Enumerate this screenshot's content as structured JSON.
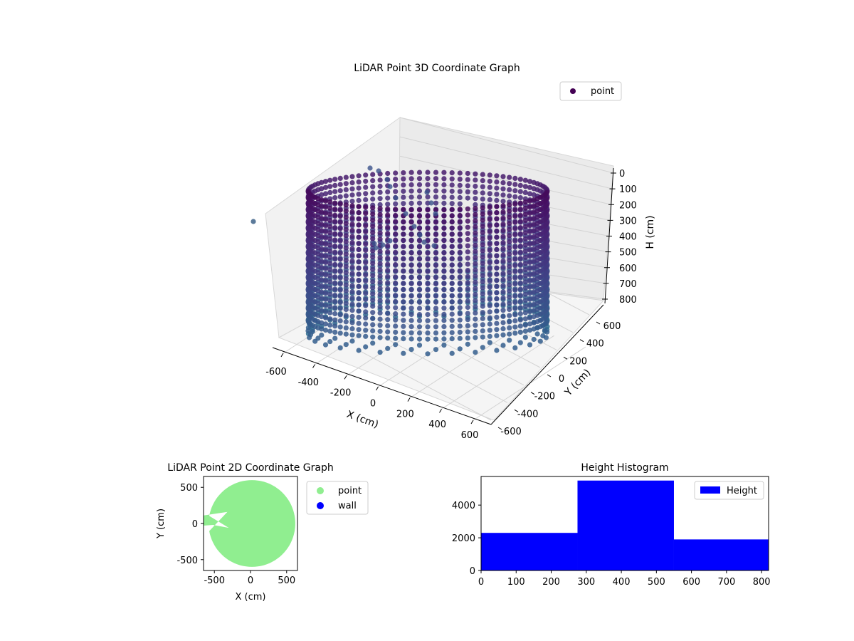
{
  "chart_data": [
    {
      "type": "scatter",
      "projection": "3d",
      "title": "LiDAR Point 3D Coordinate Graph",
      "xlabel": "X (cm)",
      "ylabel": "Y (cm)",
      "zlabel": "H (cm)",
      "xticks": [
        -600,
        -400,
        -200,
        0,
        200,
        400,
        600
      ],
      "yticks": [
        -600,
        -400,
        -200,
        0,
        200,
        400,
        600
      ],
      "zticks": [
        0,
        100,
        200,
        300,
        400,
        500,
        600,
        700,
        800
      ],
      "xlim": [
        -650,
        650
      ],
      "ylim": [
        -650,
        650
      ],
      "zlim": [
        0,
        820
      ],
      "z_inverted": true,
      "grid": true,
      "legend": {
        "position": "top-right",
        "entries": [
          {
            "label": "point",
            "color": "#440154"
          }
        ]
      },
      "colormap": "viridis",
      "shape": {
        "type": "cylindrical-ring",
        "radius": 560,
        "h_min": 0,
        "h_max": 820
      }
    },
    {
      "type": "scatter",
      "title": "LiDAR Point 2D Coordinate Graph",
      "xlabel": "X (cm)",
      "ylabel": "Y (cm)",
      "xticks": [
        -500,
        0,
        500
      ],
      "yticks": [
        -500,
        0,
        500
      ],
      "xlim": [
        -650,
        650
      ],
      "ylim": [
        -650,
        650
      ],
      "series": [
        {
          "name": "point",
          "color": "#90ee90"
        },
        {
          "name": "wall",
          "color": "#0000ff"
        }
      ],
      "legend": {
        "position": "outside-right"
      }
    },
    {
      "type": "bar",
      "title": "Height Histogram",
      "xticks": [
        0,
        100,
        200,
        300,
        400,
        500,
        600,
        700,
        800
      ],
      "yticks": [
        0,
        2000,
        4000
      ],
      "xlim": [
        0,
        820
      ],
      "ylim": [
        0,
        5750
      ],
      "bins": [
        {
          "from": 0,
          "to": 275,
          "count": 2300
        },
        {
          "from": 275,
          "to": 550,
          "count": 5500
        },
        {
          "from": 550,
          "to": 820,
          "count": 1900
        }
      ],
      "series": [
        {
          "name": "Height",
          "color": "#0000ff"
        }
      ],
      "legend": {
        "position": "top-right"
      }
    }
  ]
}
